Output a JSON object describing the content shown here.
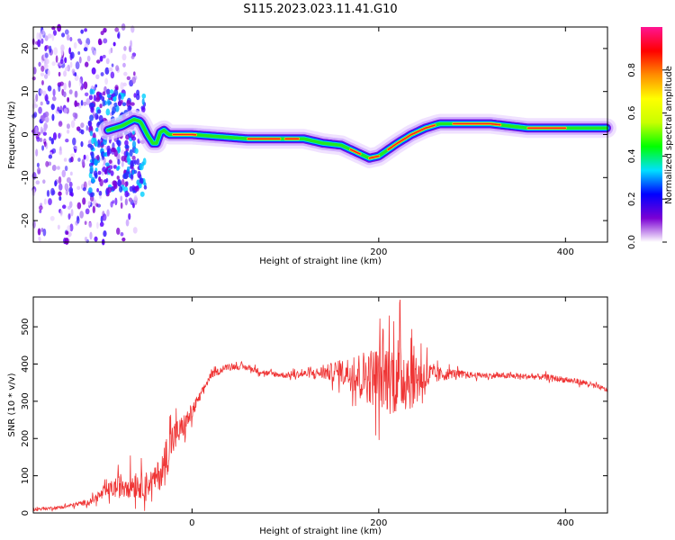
{
  "title": "S115.2023.023.11.41.G10",
  "chart_data": [
    {
      "type": "heatmap",
      "xlabel": "Height of straight line (km)",
      "ylabel": "Frequency (Hz)",
      "xlim": [
        -170,
        445
      ],
      "ylim": [
        -25,
        25
      ],
      "xticks": [
        0,
        200,
        400
      ],
      "yticks": [
        -20,
        -10,
        0,
        10,
        20
      ],
      "colorbar": {
        "label": "Normalized spectral amplitude",
        "range": [
          0.0,
          1.0
        ],
        "ticks": [
          0.0,
          0.2,
          0.4,
          0.6,
          0.8
        ],
        "tick_labels": [
          "0.0",
          "0.2",
          "0.4",
          "0.6",
          "0.8"
        ],
        "colormap": [
          "#ffffff",
          "#7b00d4",
          "#0000ff",
          "#00e0ff",
          "#00ff00",
          "#c8ff00",
          "#ffff00",
          "#ff8c00",
          "#ff0000",
          "#ff1493"
        ]
      },
      "ridge": {
        "x": [
          -90,
          -75,
          -62,
          -55,
          -48,
          -42,
          -38,
          -34,
          -30,
          -25,
          -15,
          0,
          30,
          60,
          80,
          100,
          120,
          140,
          160,
          175,
          190,
          200,
          210,
          220,
          235,
          250,
          265,
          280,
          300,
          320,
          340,
          360,
          380,
          400,
          420,
          445
        ],
        "y": [
          1,
          2,
          3.5,
          3,
          0,
          -2,
          -2,
          0.5,
          1,
          0,
          0,
          0,
          -0.5,
          -1,
          -1,
          -1,
          -1,
          -2,
          -2.5,
          -4,
          -5.5,
          -5,
          -3.5,
          -2,
          0,
          1.5,
          2.5,
          2.5,
          2.5,
          2.5,
          2,
          1.5,
          1.5,
          1.5,
          1.5,
          1.5
        ]
      }
    },
    {
      "type": "line",
      "xlabel": "Height of straight line (km)",
      "ylabel": "SNR (10 * v/v)",
      "xlim": [
        -170,
        445
      ],
      "ylim": [
        0,
        580
      ],
      "xticks": [
        0,
        200,
        400
      ],
      "yticks": [
        0,
        100,
        200,
        300,
        400,
        500
      ],
      "color": "#ef3535",
      "envelope": {
        "x": [
          -170,
          -140,
          -110,
          -90,
          -70,
          -50,
          -40,
          -30,
          -25,
          -20,
          -10,
          0,
          10,
          20,
          40,
          60,
          80,
          100,
          130,
          160,
          180,
          200,
          220,
          240,
          260,
          280,
          300,
          340,
          380,
          420,
          445
        ],
        "mean": [
          10,
          15,
          30,
          60,
          80,
          75,
          90,
          120,
          180,
          200,
          230,
          270,
          320,
          370,
          395,
          390,
          375,
          370,
          375,
          380,
          370,
          365,
          370,
          365,
          370,
          375,
          370,
          368,
          365,
          350,
          330
        ],
        "amp": [
          5,
          5,
          10,
          25,
          50,
          45,
          40,
          70,
          80,
          60,
          40,
          30,
          15,
          12,
          10,
          10,
          10,
          10,
          15,
          40,
          80,
          110,
          140,
          100,
          30,
          15,
          10,
          10,
          10,
          10,
          8
        ]
      }
    }
  ]
}
